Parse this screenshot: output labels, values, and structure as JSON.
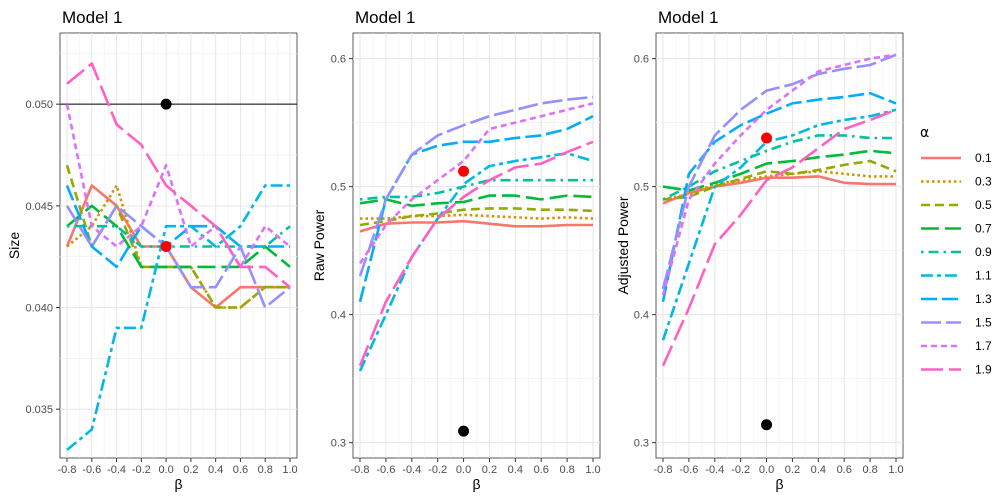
{
  "legend": {
    "title": "α",
    "entries": [
      "0.1",
      "0.3",
      "0.5",
      "0.7",
      "0.9",
      "1.1",
      "1.3",
      "1.5",
      "1.7",
      "1.9"
    ],
    "colors": [
      "#F8766D",
      "#D39200",
      "#93AA00",
      "#00BA38",
      "#00C19F",
      "#00B9E3",
      "#00ADFA",
      "#9590FF",
      "#DB72FB",
      "#FF61C3"
    ],
    "linetypes": [
      "solid",
      "dotted",
      "dashed",
      "longdash",
      "dotdash",
      "twodash",
      "longdash2",
      "longdash3",
      "dashed2",
      "longdash4"
    ]
  },
  "chart_data": [
    {
      "type": "line",
      "title": "Model 1",
      "xlabel": "β",
      "ylabel": "Size",
      "xlim": [
        -0.8,
        1.0
      ],
      "ylim": [
        0.0326,
        0.0535
      ],
      "x": [
        -0.8,
        -0.6,
        -0.4,
        -0.2,
        0.0,
        0.2,
        0.4,
        0.6,
        0.8,
        1.0
      ],
      "x_ticks": [
        -0.8,
        -0.6,
        -0.4,
        -0.2,
        0.0,
        0.2,
        0.4,
        0.6,
        0.8,
        1.0
      ],
      "x_tick_labels": [
        "-0.8",
        "-0.6",
        "-0.4",
        "-0.2",
        "0.0",
        "0.2",
        "0.4",
        "0.6",
        "0.8",
        "1.0"
      ],
      "y_ticks": [
        0.035,
        0.04,
        0.045,
        0.05
      ],
      "y_tick_labels": [
        "0.035",
        "0.040",
        "0.045",
        "0.050"
      ],
      "hline": 0.05,
      "series": [
        {
          "name": "0.1",
          "values": [
            0.043,
            0.046,
            0.045,
            0.043,
            0.043,
            0.041,
            0.04,
            0.041,
            0.041,
            0.041
          ]
        },
        {
          "name": "0.3",
          "values": [
            0.043,
            0.044,
            0.046,
            0.042,
            0.042,
            0.042,
            0.04,
            0.04,
            0.041,
            0.041
          ]
        },
        {
          "name": "0.5",
          "values": [
            0.047,
            0.043,
            0.045,
            0.042,
            0.042,
            0.042,
            0.04,
            0.04,
            0.041,
            0.041
          ]
        },
        {
          "name": "0.7",
          "values": [
            0.044,
            0.045,
            0.044,
            0.042,
            0.042,
            0.042,
            0.042,
            0.042,
            0.043,
            0.042
          ]
        },
        {
          "name": "0.9",
          "values": [
            0.044,
            0.044,
            0.044,
            0.043,
            0.043,
            0.043,
            0.043,
            0.043,
            0.043,
            0.044
          ]
        },
        {
          "name": "1.1",
          "values": [
            0.033,
            0.034,
            0.039,
            0.039,
            0.044,
            0.044,
            0.043,
            0.044,
            0.046,
            0.046
          ]
        },
        {
          "name": "1.3",
          "values": [
            0.046,
            0.043,
            0.042,
            0.044,
            0.043,
            0.044,
            0.044,
            0.043,
            0.043,
            0.043
          ]
        },
        {
          "name": "1.5",
          "values": [
            0.045,
            0.043,
            0.045,
            0.044,
            0.043,
            0.041,
            0.041,
            0.043,
            0.04,
            0.041
          ]
        },
        {
          "name": "1.7",
          "values": [
            0.05,
            0.044,
            0.043,
            0.044,
            0.047,
            0.043,
            0.044,
            0.042,
            0.044,
            0.043
          ]
        },
        {
          "name": "1.9",
          "values": [
            0.051,
            0.052,
            0.049,
            0.048,
            0.046,
            0.045,
            0.044,
            0.042,
            0.042,
            0.041
          ]
        }
      ],
      "points": [
        {
          "x": 0.0,
          "y": 0.05,
          "color": "#000000"
        },
        {
          "x": 0.0,
          "y": 0.043,
          "color": "#FF0000"
        }
      ]
    },
    {
      "type": "line",
      "title": "Model 1",
      "xlabel": "β",
      "ylabel": "Raw Power",
      "xlim": [
        -0.8,
        1.0
      ],
      "ylim": [
        0.288,
        0.62
      ],
      "x": [
        -0.8,
        -0.6,
        -0.4,
        -0.2,
        0.0,
        0.2,
        0.4,
        0.6,
        0.8,
        1.0
      ],
      "x_ticks": [
        -0.8,
        -0.6,
        -0.4,
        -0.2,
        0.0,
        0.2,
        0.4,
        0.6,
        0.8,
        1.0
      ],
      "x_tick_labels": [
        "-0.8",
        "-0.6",
        "-0.4",
        "-0.2",
        "0.0",
        "0.2",
        "0.4",
        "0.6",
        "0.8",
        "1.0"
      ],
      "y_ticks": [
        0.3,
        0.4,
        0.5,
        0.6
      ],
      "y_tick_labels": [
        "0.3",
        "0.4",
        "0.5",
        "0.6"
      ],
      "series": [
        {
          "name": "0.1",
          "values": [
            0.465,
            0.471,
            0.472,
            0.472,
            0.473,
            0.471,
            0.469,
            0.469,
            0.47,
            0.47
          ]
        },
        {
          "name": "0.3",
          "values": [
            0.475,
            0.475,
            0.477,
            0.477,
            0.478,
            0.477,
            0.476,
            0.475,
            0.476,
            0.475
          ]
        },
        {
          "name": "0.5",
          "values": [
            0.47,
            0.473,
            0.477,
            0.479,
            0.482,
            0.483,
            0.483,
            0.482,
            0.482,
            0.481
          ]
        },
        {
          "name": "0.7",
          "values": [
            0.487,
            0.49,
            0.485,
            0.487,
            0.488,
            0.493,
            0.493,
            0.49,
            0.493,
            0.492
          ]
        },
        {
          "name": "0.9",
          "values": [
            0.49,
            0.492,
            0.492,
            0.495,
            0.5,
            0.505,
            0.505,
            0.505,
            0.505,
            0.505
          ]
        },
        {
          "name": "1.1",
          "values": [
            0.356,
            0.4,
            0.445,
            0.475,
            0.502,
            0.516,
            0.52,
            0.523,
            0.526,
            0.52
          ]
        },
        {
          "name": "1.3",
          "values": [
            0.41,
            0.49,
            0.525,
            0.532,
            0.535,
            0.535,
            0.538,
            0.54,
            0.545,
            0.555
          ]
        },
        {
          "name": "1.5",
          "values": [
            0.43,
            0.49,
            0.525,
            0.54,
            0.548,
            0.555,
            0.56,
            0.565,
            0.568,
            0.57
          ]
        },
        {
          "name": "1.7",
          "values": [
            0.44,
            0.47,
            0.49,
            0.505,
            0.52,
            0.545,
            0.55,
            0.555,
            0.56,
            0.565
          ]
        },
        {
          "name": "1.9",
          "values": [
            0.36,
            0.41,
            0.445,
            0.475,
            0.492,
            0.505,
            0.515,
            0.518,
            0.527,
            0.535
          ]
        }
      ],
      "points": [
        {
          "x": 0.0,
          "y": 0.309,
          "color": "#000000"
        },
        {
          "x": 0.0,
          "y": 0.512,
          "color": "#FF0000"
        }
      ]
    },
    {
      "type": "line",
      "title": "Model 1",
      "xlabel": "β",
      "ylabel": "Adjusted Power",
      "xlim": [
        -0.8,
        1.0
      ],
      "ylim": [
        0.288,
        0.62
      ],
      "x": [
        -0.8,
        -0.6,
        -0.4,
        -0.2,
        0.0,
        0.2,
        0.4,
        0.6,
        0.8,
        1.0
      ],
      "x_ticks": [
        -0.8,
        -0.6,
        -0.4,
        -0.2,
        0.0,
        0.2,
        0.4,
        0.6,
        0.8,
        1.0
      ],
      "x_tick_labels": [
        "-0.8",
        "-0.6",
        "-0.4",
        "-0.2",
        "0.0",
        "0.2",
        "0.4",
        "0.6",
        "0.8",
        "1.0"
      ],
      "y_ticks": [
        0.3,
        0.4,
        0.5,
        0.6
      ],
      "y_tick_labels": [
        "0.3",
        "0.4",
        "0.5",
        "0.6"
      ],
      "series": [
        {
          "name": "0.1",
          "values": [
            0.487,
            0.495,
            0.5,
            0.503,
            0.507,
            0.507,
            0.508,
            0.503,
            0.502,
            0.502
          ]
        },
        {
          "name": "0.3",
          "values": [
            0.49,
            0.494,
            0.502,
            0.505,
            0.508,
            0.51,
            0.512,
            0.51,
            0.508,
            0.508
          ]
        },
        {
          "name": "0.5",
          "values": [
            0.49,
            0.492,
            0.5,
            0.506,
            0.512,
            0.51,
            0.513,
            0.517,
            0.52,
            0.512
          ]
        },
        {
          "name": "0.7",
          "values": [
            0.5,
            0.497,
            0.503,
            0.51,
            0.518,
            0.52,
            0.523,
            0.525,
            0.528,
            0.526
          ]
        },
        {
          "name": "0.9",
          "values": [
            0.49,
            0.5,
            0.512,
            0.52,
            0.528,
            0.535,
            0.54,
            0.54,
            0.538,
            0.538
          ]
        },
        {
          "name": "1.1",
          "values": [
            0.38,
            0.44,
            0.5,
            0.515,
            0.535,
            0.54,
            0.548,
            0.552,
            0.555,
            0.56
          ]
        },
        {
          "name": "1.3",
          "values": [
            0.41,
            0.51,
            0.535,
            0.548,
            0.557,
            0.565,
            0.568,
            0.57,
            0.573,
            0.565
          ]
        },
        {
          "name": "1.5",
          "values": [
            0.42,
            0.5,
            0.54,
            0.56,
            0.575,
            0.58,
            0.588,
            0.592,
            0.595,
            0.603
          ]
        },
        {
          "name": "1.7",
          "values": [
            0.415,
            0.49,
            0.518,
            0.54,
            0.56,
            0.575,
            0.59,
            0.595,
            0.6,
            0.603
          ]
        },
        {
          "name": "1.9",
          "values": [
            0.36,
            0.405,
            0.455,
            0.478,
            0.505,
            0.515,
            0.53,
            0.545,
            0.552,
            0.56
          ]
        }
      ],
      "points": [
        {
          "x": 0.0,
          "y": 0.314,
          "color": "#000000"
        },
        {
          "x": 0.0,
          "y": 0.538,
          "color": "#FF0000"
        }
      ]
    }
  ]
}
